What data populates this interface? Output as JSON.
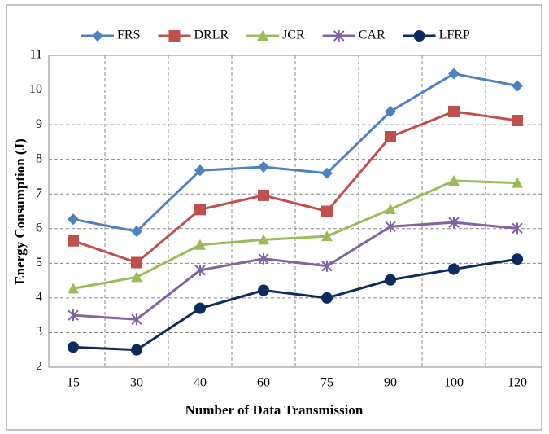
{
  "chart_data": {
    "type": "line",
    "x_label": "Number of Data Transmission",
    "y_label": "Energy Consumption (J)",
    "categories": [
      "15",
      "30",
      "40",
      "60",
      "75",
      "90",
      "100",
      "120"
    ],
    "series": [
      {
        "name": "FRS",
        "color": "#4f81bd",
        "marker": "diamond",
        "values": [
          6.27,
          5.92,
          7.68,
          7.78,
          7.6,
          9.38,
          10.47,
          10.12
        ]
      },
      {
        "name": "DRLR",
        "color": "#c0504d",
        "marker": "square",
        "values": [
          5.65,
          5.02,
          6.55,
          6.96,
          6.5,
          8.65,
          9.38,
          9.12
        ]
      },
      {
        "name": "JCR",
        "color": "#9bbb59",
        "marker": "triangle",
        "values": [
          4.27,
          4.6,
          5.53,
          5.68,
          5.78,
          6.56,
          7.38,
          7.32
        ]
      },
      {
        "name": "CAR",
        "color": "#8064a2",
        "marker": "star",
        "values": [
          3.5,
          3.38,
          4.8,
          5.13,
          4.92,
          6.06,
          6.18,
          6.01
        ]
      },
      {
        "name": "LFRP",
        "color": "#0d2a5e",
        "marker": "circle",
        "values": [
          2.58,
          2.5,
          3.7,
          4.22,
          4.0,
          4.52,
          4.83,
          5.12
        ]
      }
    ],
    "ylim": [
      2,
      11
    ],
    "yticks": [
      2,
      3,
      4,
      5,
      6,
      7,
      8,
      9,
      10,
      11
    ],
    "grid": true,
    "legend": "top"
  }
}
